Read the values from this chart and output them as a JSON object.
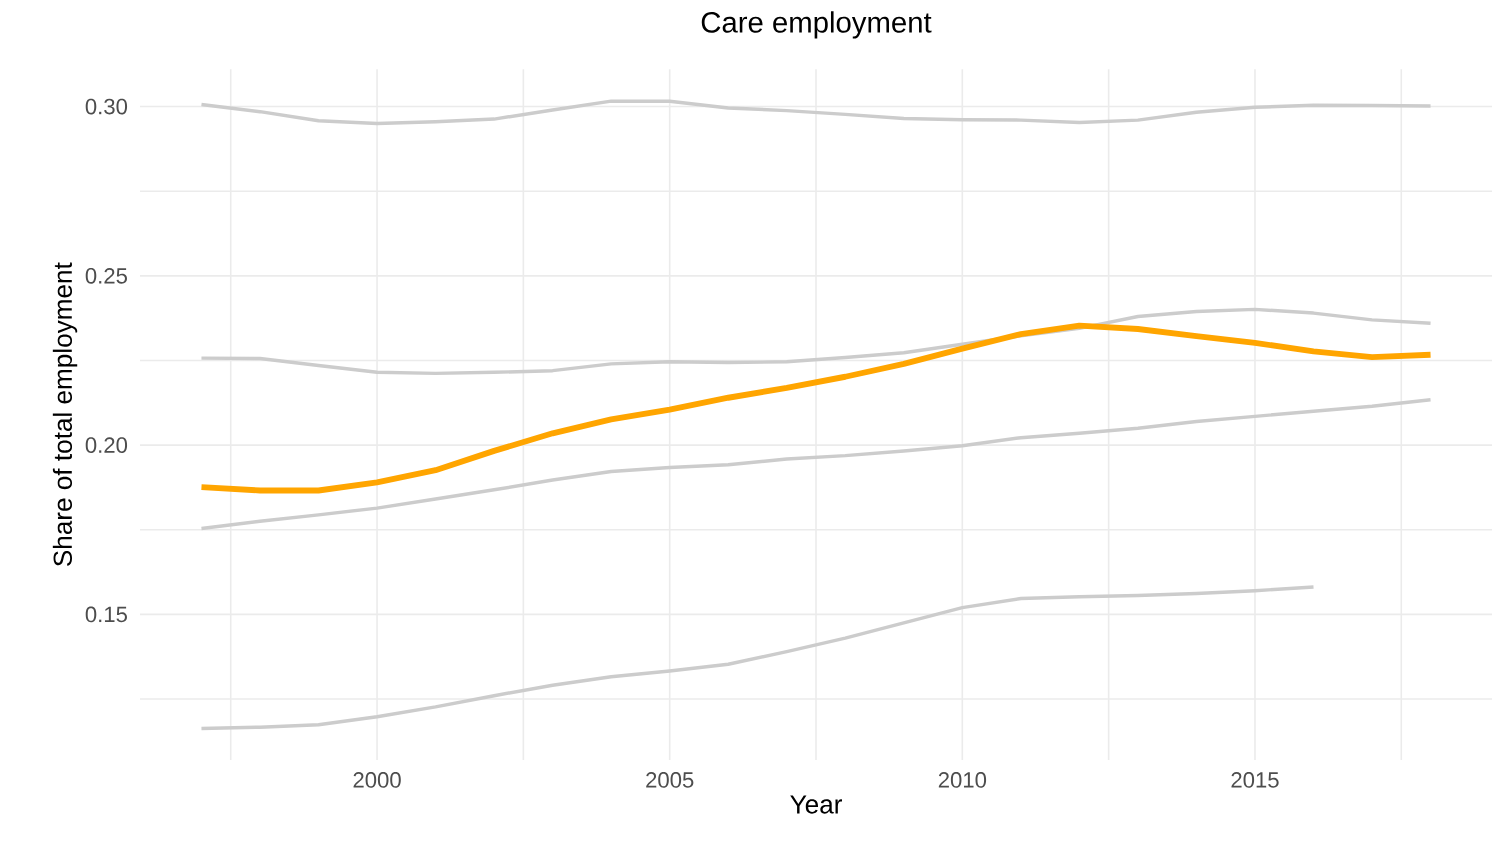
{
  "chart_data": {
    "type": "line",
    "title": "Care employment",
    "xlabel": "Year",
    "ylabel": "Share of total employment",
    "x": [
      1997,
      1998,
      1999,
      2000,
      2001,
      2002,
      2003,
      2004,
      2005,
      2006,
      2007,
      2008,
      2009,
      2010,
      2011,
      2012,
      2013,
      2014,
      2015,
      2016,
      2017,
      2018
    ],
    "series": [
      {
        "color": "#cccccc",
        "values": [
          0.3006,
          0.2985,
          0.2958,
          0.295,
          0.2955,
          0.2963,
          0.299,
          0.3016,
          0.3016,
          0.2996,
          0.2988,
          0.2977,
          0.2965,
          0.2961,
          0.296,
          0.2953,
          0.296,
          0.2983,
          0.2998,
          0.3004,
          0.3003,
          0.3002
        ]
      },
      {
        "color": "#cccccc",
        "values": [
          0.2257,
          0.2256,
          0.2235,
          0.2215,
          0.2212,
          0.2215,
          0.222,
          0.224,
          0.2246,
          0.2244,
          0.2246,
          0.2259,
          0.2273,
          0.2298,
          0.2323,
          0.2345,
          0.238,
          0.2395,
          0.2401,
          0.239,
          0.237,
          0.236
        ]
      },
      {
        "color": "#cccccc",
        "values": [
          0.1754,
          0.1775,
          0.1794,
          0.1814,
          0.1841,
          0.1868,
          0.1897,
          0.1922,
          0.1934,
          0.1942,
          0.1959,
          0.1969,
          0.1983,
          0.1998,
          0.2022,
          0.2035,
          0.205,
          0.207,
          0.2085,
          0.21,
          0.2115,
          0.2134
        ]
      },
      {
        "color": "#cccccc",
        "values": [
          0.1163,
          0.1167,
          0.1174,
          0.1198,
          0.1227,
          0.126,
          0.1291,
          0.1316,
          0.1333,
          0.1353,
          0.139,
          0.143,
          0.1475,
          0.152,
          0.1547,
          0.1552,
          0.1556,
          0.1562,
          0.157,
          0.1581,
          null,
          null
        ]
      },
      {
        "color": "#ffa500",
        "values": [
          0.1876,
          0.1866,
          0.1866,
          0.189,
          0.1926,
          0.1983,
          0.2035,
          0.2076,
          0.2105,
          0.214,
          0.2169,
          0.2202,
          0.224,
          0.2285,
          0.2328,
          0.2353,
          0.2343,
          0.2322,
          0.2302,
          0.2277,
          0.226,
          0.2267
        ]
      }
    ],
    "xlim": [
      1995.95,
      2019.05
    ],
    "ylim": [
      0.107,
      0.311
    ],
    "xticks": [
      {
        "value": 1997.5,
        "label": null
      },
      2000,
      {
        "value": 2002.5,
        "label": null
      },
      2005,
      {
        "value": 2007.5,
        "label": null
      },
      2010,
      {
        "value": 2012.5,
        "label": null
      },
      2015,
      {
        "value": 2017.5,
        "label": null
      }
    ],
    "yticks": [
      {
        "value": 0.125,
        "label": null
      },
      {
        "value": 0.15,
        "label": "0.15"
      },
      {
        "value": 0.175,
        "label": null
      },
      {
        "value": 0.2,
        "label": "0.20"
      },
      {
        "value": 0.225,
        "label": null
      },
      {
        "value": 0.25,
        "label": "0.25"
      },
      {
        "value": 0.275,
        "label": null
      },
      {
        "value": 0.3,
        "label": "0.30"
      }
    ],
    "grid": true,
    "marker": "none",
    "line_style": "solid"
  }
}
